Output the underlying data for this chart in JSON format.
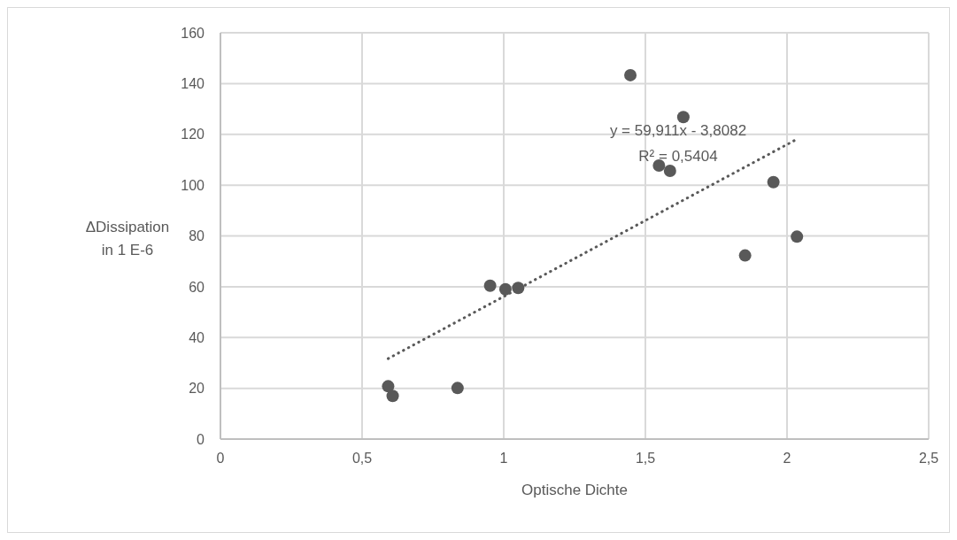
{
  "chart_data": {
    "type": "scatter",
    "xlabel": "Optische Dichte",
    "ylabel": "ΔDissipation in 1 E-6",
    "xlim": [
      0,
      2.5
    ],
    "xticks": [
      0,
      {
        "value": 0.5,
        "label": "0,5"
      },
      1,
      {
        "value": 1.5,
        "label": "1,5"
      },
      2,
      {
        "value": 2.5,
        "label": "2,5"
      }
    ],
    "ylim": [
      0,
      160
    ],
    "yticks": [
      0,
      20,
      40,
      60,
      80,
      100,
      120,
      140,
      160
    ],
    "grid": true,
    "legend": false,
    "series": [
      {
        "color": "#595959",
        "marker": "circle",
        "x": [
          0.592,
          0.608,
          0.837,
          0.952,
          1.006,
          1.051,
          1.447,
          1.548,
          1.587,
          1.634,
          1.852,
          1.952,
          2.035
        ],
        "values": [
          20.8,
          17.0,
          20.1,
          60.4,
          59.0,
          59.5,
          143.3,
          107.7,
          105.6,
          126.8,
          72.3,
          101.2,
          79.7
        ]
      },
      {
        "type": "line",
        "color": "#595959",
        "line_style": "dotted",
        "marker": "none",
        "x": [
          0.592,
          2.035
        ],
        "values": [
          31.7,
          118.1
        ]
      }
    ],
    "annotations": [
      "y = 59,911x - 3,8082",
      "R² = 0,5404"
    ]
  }
}
